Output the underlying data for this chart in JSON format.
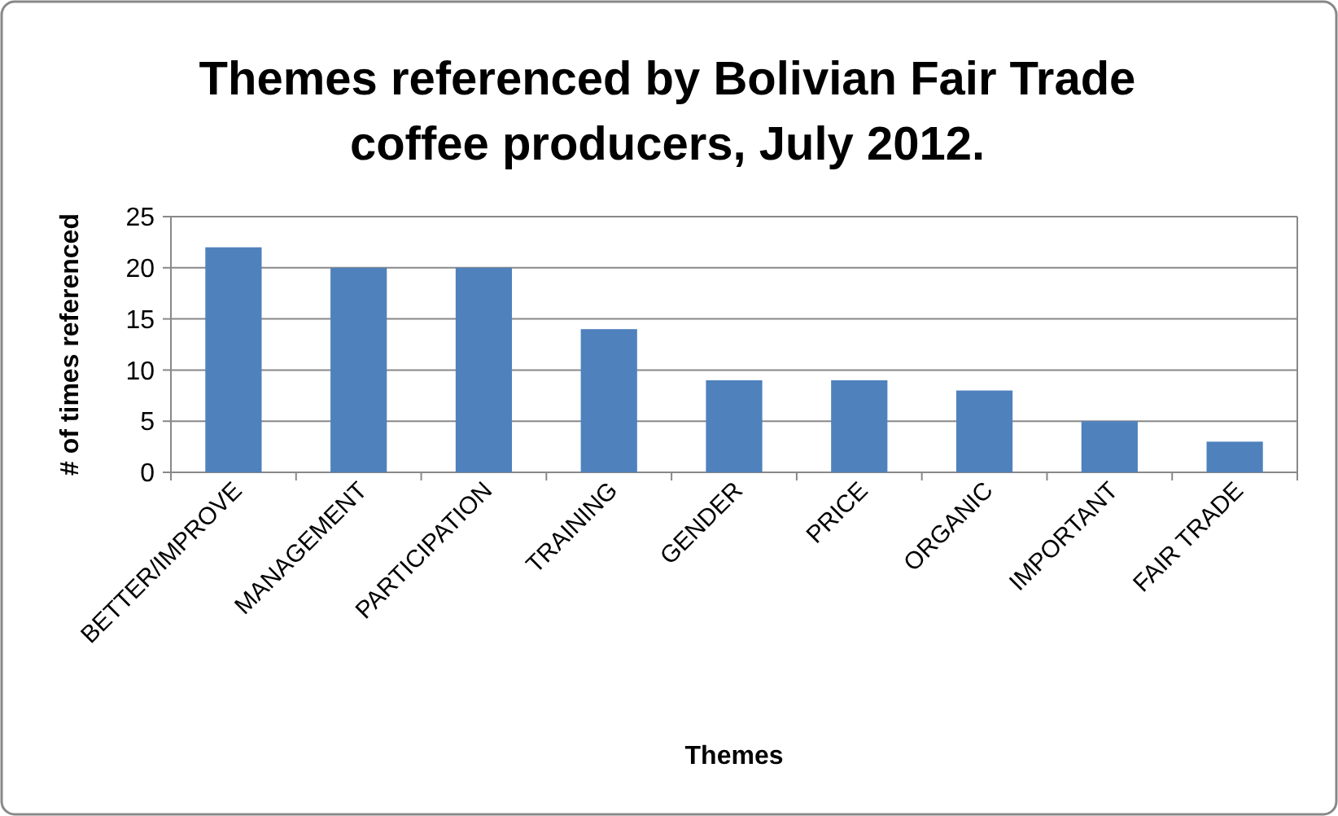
{
  "chart_data": {
    "type": "bar",
    "title": "Themes referenced by Bolivian Fair Trade coffee producers, July 2012.",
    "xlabel": "Themes",
    "ylabel": "# of times referenced",
    "categories": [
      "BETTER/IMPROVE",
      "MANAGEMENT",
      "PARTICIPATION",
      "TRAINING",
      "GENDER",
      "PRICE",
      "ORGANIC",
      "IMPORTANT",
      "FAIR TRADE"
    ],
    "values": [
      22,
      20,
      20,
      14,
      9,
      9,
      8,
      5,
      3
    ],
    "color": "#4f81bd",
    "ylim": [
      0,
      25
    ],
    "yticks": [
      0,
      5,
      10,
      15,
      20,
      25
    ],
    "grid": "y"
  }
}
